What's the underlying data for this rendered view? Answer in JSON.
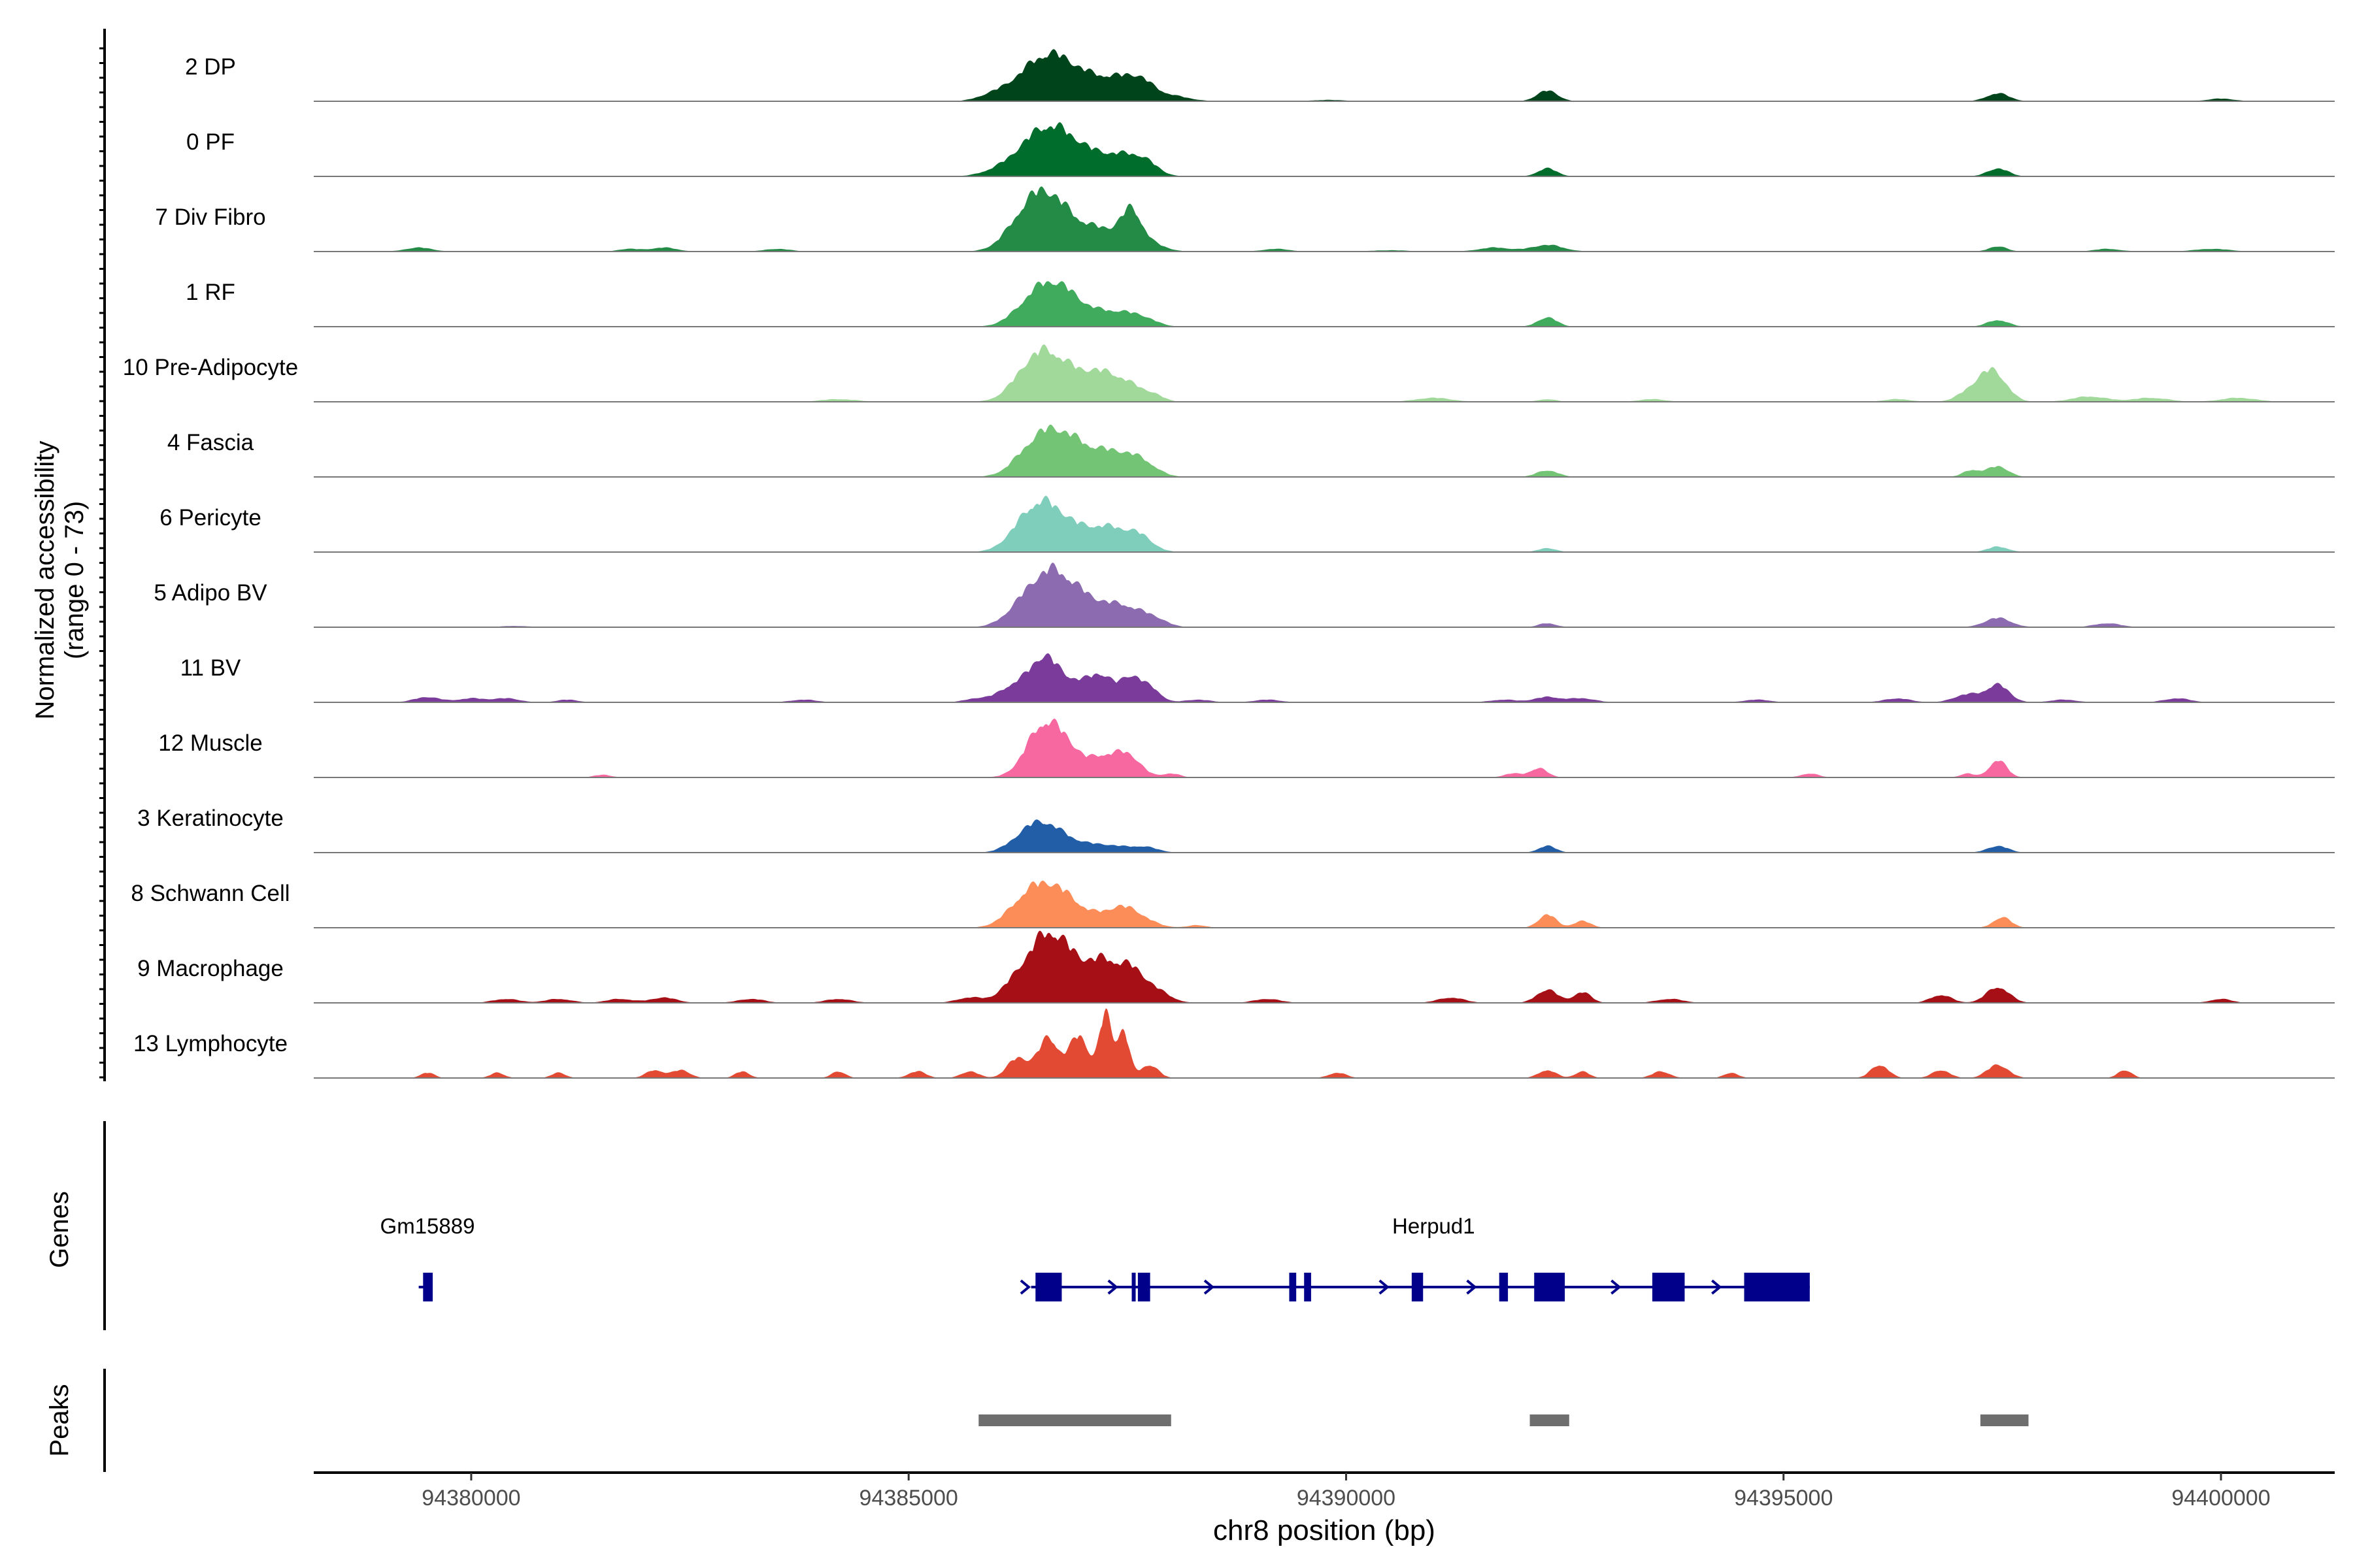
{
  "chart_data": {
    "type": "area",
    "title": "",
    "ylabel_line1": "Normalized accessibility",
    "ylabel_line2": "(range 0 - 73)",
    "xlabel": "chr8 position (bp)",
    "xlim": [
      94378200,
      94401300
    ],
    "x_ticks": [
      94380000,
      94385000,
      94390000,
      94395000,
      94400000
    ],
    "x_tick_labels": [
      "94380000",
      "94385000",
      "94390000",
      "94395000",
      "94400000"
    ],
    "y_range": [
      0,
      73
    ],
    "tracks": [
      {
        "name": "2 DP",
        "color": "#00441b",
        "peaks": [
          [
            94386650,
            29,
            260
          ],
          [
            94386400,
            8,
            250
          ],
          [
            94386150,
            5,
            220
          ],
          [
            94387000,
            8,
            200
          ],
          [
            94387350,
            15,
            220
          ],
          [
            94387650,
            12,
            160
          ],
          [
            94388000,
            4,
            200
          ],
          [
            94392300,
            8,
            120
          ],
          [
            94397450,
            6,
            130
          ],
          [
            94385900,
            2,
            150
          ],
          [
            94389800,
            1,
            200
          ],
          [
            94400000,
            2,
            150
          ]
        ]
      },
      {
        "name": "0 PF",
        "color": "#006d2c",
        "peaks": [
          [
            94386650,
            30,
            260
          ],
          [
            94386400,
            10,
            250
          ],
          [
            94386150,
            4,
            220
          ],
          [
            94387000,
            9,
            200
          ],
          [
            94387400,
            15,
            230
          ],
          [
            94387700,
            8,
            150
          ],
          [
            94392300,
            6,
            110
          ],
          [
            94397450,
            6,
            120
          ],
          [
            94385900,
            1,
            150
          ]
        ]
      },
      {
        "name": "7 Div Fibro",
        "color": "#238b45",
        "peaks": [
          [
            94386550,
            40,
            230
          ],
          [
            94386250,
            12,
            200
          ],
          [
            94386900,
            12,
            200
          ],
          [
            94387250,
            14,
            200
          ],
          [
            94387550,
            27,
            120
          ],
          [
            94387800,
            5,
            150
          ],
          [
            94392300,
            5,
            180
          ],
          [
            94397450,
            4,
            100
          ],
          [
            94379400,
            3,
            150
          ],
          [
            94381800,
            2,
            120
          ],
          [
            94382200,
            3,
            150
          ],
          [
            94383500,
            2,
            150
          ],
          [
            94389200,
            2,
            150
          ],
          [
            94390500,
            1,
            200
          ],
          [
            94391700,
            3,
            180
          ],
          [
            94398700,
            2,
            150
          ],
          [
            94399900,
            2,
            200
          ]
        ]
      },
      {
        "name": "1 RF",
        "color": "#41ab5d",
        "peaks": [
          [
            94386650,
            30,
            250
          ],
          [
            94386350,
            8,
            200
          ],
          [
            94387000,
            6,
            220
          ],
          [
            94387400,
            10,
            220
          ],
          [
            94387700,
            4,
            150
          ],
          [
            94392300,
            7,
            110
          ],
          [
            94397450,
            5,
            120
          ]
        ]
      },
      {
        "name": "10 Pre-Adipocyte",
        "color": "#a1d99b",
        "peaks": [
          [
            94386600,
            26,
            200
          ],
          [
            94386350,
            18,
            200
          ],
          [
            94386900,
            14,
            200
          ],
          [
            94387200,
            16,
            180
          ],
          [
            94387500,
            12,
            180
          ],
          [
            94387800,
            4,
            120
          ],
          [
            94397400,
            22,
            150
          ],
          [
            94397150,
            8,
            150
          ],
          [
            94384200,
            2,
            200
          ],
          [
            94391000,
            3,
            200
          ],
          [
            94392300,
            2,
            100
          ],
          [
            94393500,
            2,
            150
          ],
          [
            94396300,
            2,
            150
          ],
          [
            94398500,
            4,
            200
          ],
          [
            94399200,
            3,
            200
          ],
          [
            94400200,
            3,
            200
          ]
        ]
      },
      {
        "name": "4 Fascia",
        "color": "#74c476",
        "peaks": [
          [
            94386650,
            31,
            250
          ],
          [
            94386350,
            9,
            200
          ],
          [
            94387000,
            10,
            220
          ],
          [
            94387400,
            17,
            250
          ],
          [
            94387700,
            5,
            150
          ],
          [
            94392300,
            5,
            120
          ],
          [
            94397450,
            8,
            120
          ],
          [
            94397150,
            5,
            100
          ]
        ]
      },
      {
        "name": "6 Pericyte",
        "color": "#7fcdbb",
        "peaks": [
          [
            94386550,
            31,
            230
          ],
          [
            94386300,
            10,
            200
          ],
          [
            94386900,
            10,
            220
          ],
          [
            94387300,
            17,
            230
          ],
          [
            94387650,
            9,
            150
          ],
          [
            94392300,
            3,
            100
          ],
          [
            94397450,
            4,
            120
          ]
        ]
      },
      {
        "name": "5 Adipo BV",
        "color": "#8c6bb1",
        "peaks": [
          [
            94386650,
            39,
            230
          ],
          [
            94386300,
            13,
            200
          ],
          [
            94387050,
            15,
            200
          ],
          [
            94387450,
            15,
            200
          ],
          [
            94387800,
            6,
            150
          ],
          [
            94392300,
            3,
            100
          ],
          [
            94397450,
            7,
            150
          ],
          [
            94398700,
            3,
            150
          ],
          [
            94380500,
            1,
            150
          ]
        ]
      },
      {
        "name": "11 BV",
        "color": "#7a3b9a",
        "peaks": [
          [
            94386550,
            33,
            160
          ],
          [
            94386200,
            12,
            160
          ],
          [
            94386900,
            14,
            160
          ],
          [
            94387200,
            19,
            130
          ],
          [
            94387550,
            20,
            130
          ],
          [
            94387800,
            8,
            100
          ],
          [
            94392300,
            4,
            150
          ],
          [
            94397450,
            13,
            130
          ],
          [
            94397100,
            6,
            150
          ],
          [
            94379500,
            4,
            150
          ],
          [
            94380000,
            3,
            150
          ],
          [
            94380400,
            3,
            150
          ],
          [
            94381100,
            2,
            120
          ],
          [
            94383800,
            2,
            150
          ],
          [
            94385800,
            3,
            150
          ],
          [
            94388300,
            2,
            150
          ],
          [
            94389100,
            2,
            150
          ],
          [
            94391800,
            2,
            150
          ],
          [
            94392700,
            3,
            150
          ],
          [
            94394700,
            2,
            150
          ],
          [
            94396300,
            3,
            150
          ],
          [
            94398200,
            2,
            150
          ],
          [
            94399500,
            3,
            150
          ]
        ]
      },
      {
        "name": "12 Muscle",
        "color": "#f768a1",
        "peaks": [
          [
            94386550,
            40,
            200
          ],
          [
            94386850,
            14,
            150
          ],
          [
            94387200,
            14,
            150
          ],
          [
            94387500,
            17,
            150
          ],
          [
            94388000,
            3,
            100
          ],
          [
            94392200,
            7,
            100
          ],
          [
            94391900,
            3,
            100
          ],
          [
            94397450,
            13,
            100
          ],
          [
            94381500,
            2,
            100
          ],
          [
            94395300,
            3,
            100
          ],
          [
            94397100,
            3,
            80
          ]
        ]
      },
      {
        "name": "3 Keratinocyte",
        "color": "#225ea8",
        "peaks": [
          [
            94386550,
            19,
            200
          ],
          [
            94386300,
            8,
            180
          ],
          [
            94386900,
            6,
            200
          ],
          [
            94387300,
            5,
            200
          ],
          [
            94387700,
            4,
            150
          ],
          [
            94392300,
            5,
            100
          ],
          [
            94397450,
            5,
            120
          ]
        ]
      },
      {
        "name": "8 Schwann Cell",
        "color": "#fc8d59",
        "peaks": [
          [
            94386600,
            26,
            220
          ],
          [
            94386300,
            15,
            200
          ],
          [
            94386900,
            10,
            200
          ],
          [
            94387450,
            16,
            230
          ],
          [
            94392300,
            10,
            100
          ],
          [
            94392700,
            5,
            100
          ],
          [
            94397500,
            8,
            100
          ],
          [
            94388300,
            2,
            100
          ]
        ]
      },
      {
        "name": "9 Macrophage",
        "color": "#a50f15",
        "peaks": [
          [
            94386600,
            48,
            200
          ],
          [
            94386250,
            16,
            180
          ],
          [
            94386950,
            22,
            180
          ],
          [
            94387250,
            25,
            150
          ],
          [
            94387550,
            24,
            150
          ],
          [
            94387850,
            8,
            150
          ],
          [
            94392300,
            10,
            120
          ],
          [
            94392700,
            8,
            100
          ],
          [
            94396800,
            6,
            120
          ],
          [
            94397450,
            12,
            130
          ],
          [
            94380400,
            3,
            150
          ],
          [
            94381000,
            3,
            150
          ],
          [
            94381700,
            3,
            150
          ],
          [
            94382200,
            4,
            150
          ],
          [
            94383200,
            3,
            150
          ],
          [
            94384200,
            3,
            150
          ],
          [
            94385700,
            4,
            150
          ],
          [
            94389100,
            3,
            150
          ],
          [
            94391200,
            4,
            150
          ],
          [
            94393700,
            3,
            150
          ],
          [
            94400000,
            3,
            120
          ]
        ]
      },
      {
        "name": "13 Lymphocyte",
        "color": "#e34a33",
        "peaks": [
          [
            94386600,
            30,
            120
          ],
          [
            94386950,
            32,
            110
          ],
          [
            94387250,
            48,
            70
          ],
          [
            94387450,
            36,
            70
          ],
          [
            94386250,
            15,
            120
          ],
          [
            94387750,
            10,
            100
          ],
          [
            94392300,
            6,
            100
          ],
          [
            94392700,
            5,
            80
          ],
          [
            94393600,
            5,
            100
          ],
          [
            94396100,
            10,
            100
          ],
          [
            94396800,
            6,
            100
          ],
          [
            94397450,
            10,
            120
          ],
          [
            94398900,
            6,
            80
          ],
          [
            94379500,
            4,
            80
          ],
          [
            94380300,
            4,
            80
          ],
          [
            94381000,
            4,
            80
          ],
          [
            94382100,
            6,
            100
          ],
          [
            94382400,
            6,
            100
          ],
          [
            94383100,
            5,
            80
          ],
          [
            94384200,
            5,
            80
          ],
          [
            94385100,
            5,
            100
          ],
          [
            94385700,
            5,
            100
          ],
          [
            94389900,
            4,
            100
          ],
          [
            94394400,
            4,
            80
          ]
        ]
      }
    ],
    "genes": {
      "label": "Genes",
      "gene_names": [
        {
          "name": "Gm15889",
          "x": 94379500
        },
        {
          "name": "Herpud1",
          "x": 94391000
        }
      ],
      "lines": [
        [
          94379400,
          94379500
        ],
        [
          94386400,
          94395300
        ]
      ],
      "exons": [
        [
          94379450,
          94379560
        ],
        [
          94386450,
          94386750
        ],
        [
          94387550,
          94387580
        ],
        [
          94387620,
          94387760
        ],
        [
          94389350,
          94389430
        ],
        [
          94389520,
          94389600
        ],
        [
          94390750,
          94390880
        ],
        [
          94391750,
          94391850
        ],
        [
          94392150,
          94392500
        ],
        [
          94393500,
          94393870
        ],
        [
          94394550,
          94395300
        ]
      ],
      "arrows": [
        94386350,
        94387350,
        94388450,
        94390450,
        94391450,
        94393100,
        94394250
      ]
    },
    "peaks_track": {
      "label": "Peaks",
      "regions": [
        [
          94385800,
          94388000
        ],
        [
          94392100,
          94392550
        ],
        [
          94397250,
          94397800
        ]
      ]
    }
  }
}
